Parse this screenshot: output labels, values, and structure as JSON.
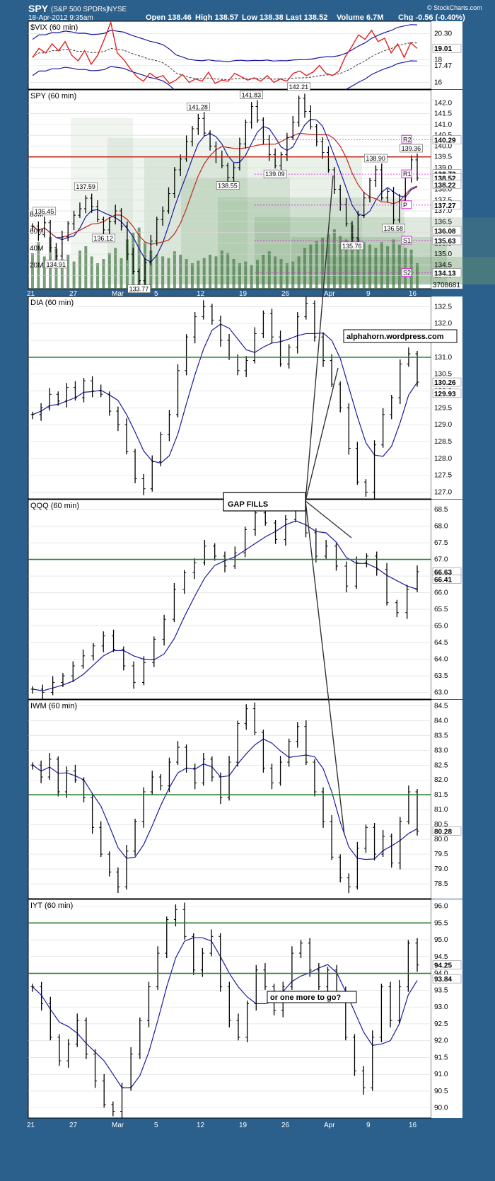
{
  "header": {
    "symbol": "SPY",
    "name": "(S&P 500 SPDRs)",
    "exchange": "NYSE",
    "date": "18-Apr-2012 9:35am",
    "open": "Open 138.46",
    "high": "High 138.57",
    "low": "Low 138.38",
    "last": "Last 138.52",
    "volume": "Volume 6.7M",
    "chg": "Chg -0.56 (-0.40%)",
    "brand": "© StockCharts.com"
  },
  "colors": {
    "frame": "#2b5f8c",
    "price": "#000000",
    "ma_blue": "#1a1aa0",
    "ma_red": "#c0281c",
    "vix_price": "#e02020",
    "support_green": "#2e7d32",
    "pivot_magenta": "#e020e0",
    "volume_green": "#6e9e6e"
  },
  "x_axis": {
    "labels": [
      "21",
      "27",
      "Mar",
      "5",
      "12",
      "19",
      "26",
      "Apr",
      "9",
      "16"
    ]
  },
  "annotations": {
    "gap_fills": "GAP FILLS",
    "blog": "alphahorn.wordpress.com",
    "one_more": "or one more to go?"
  },
  "chart_data": [
    {
      "type": "line",
      "title": "$VIX (60 min)",
      "ylim": [
        15.4,
        21.4
      ],
      "y_ticks": [
        "20.30",
        "18",
        "17.47",
        "16"
      ],
      "last_label": "19.01",
      "series": [
        {
          "name": "$VIX",
          "values": [
            18.2,
            19.0,
            18.6,
            19.4,
            18.8,
            19.6,
            18.4,
            17.9,
            18.8,
            17.6,
            18.4,
            19.8,
            21.3,
            18.6,
            18.0,
            17.2,
            16.5,
            16.1,
            16.8,
            16.4,
            16.6,
            15.9,
            16.2,
            16.7,
            16.0,
            16.3,
            16.1,
            16.9,
            15.9,
            16.2,
            16.1,
            16.8,
            16.5,
            16.2,
            16.4,
            16.1,
            16.6,
            16.0,
            16.3,
            16.1,
            16.8,
            17.0,
            16.6,
            16.9,
            17.5,
            16.8,
            16.6,
            17.0,
            18.3,
            19.2,
            20.2,
            19.8,
            20.6,
            19.6,
            19.9,
            18.6,
            19.4,
            18.2,
            19.5,
            19.0
          ]
        }
      ]
    },
    {
      "type": "bar",
      "title": "SPY (60 min)",
      "ylim": [
        133.4,
        142.6
      ],
      "y_ticks": [
        "142.5",
        "142.0",
        "141.5",
        "141.0",
        "140.5",
        "140.0",
        "139.5",
        "139.0",
        "138.5",
        "138.0",
        "137.5",
        "137.0",
        "136.5",
        "136.0",
        "135.5",
        "135.0",
        "134.5",
        "134.0"
      ],
      "right_labels": [
        "140.29",
        "138.72",
        "138.52",
        "138.22",
        "137.27",
        "136.08",
        "135.63",
        "134.13"
      ],
      "volume_labels": [
        "80M",
        "60M",
        "40M",
        "20M"
      ],
      "volume_last": "3708681",
      "price_labels": [
        "136.45",
        "134.91",
        "137.59",
        "136.12",
        "133.77",
        "141.28",
        "141.83",
        "138.55",
        "139.09",
        "142.21",
        "135.76",
        "138.90",
        "136.58",
        "139.36"
      ],
      "pivot_labels": [
        "R2",
        "R1",
        "P",
        "S1",
        "S2"
      ],
      "series": [
        {
          "name": "SPY",
          "values": [
            136.3,
            135.9,
            136.45,
            135.3,
            134.91,
            135.8,
            136.4,
            136.8,
            137.1,
            137.59,
            137.2,
            136.6,
            136.12,
            136.5,
            137.0,
            136.3,
            135.0,
            134.2,
            133.77,
            134.6,
            135.6,
            136.6,
            137.0,
            137.8,
            138.9,
            139.4,
            140.2,
            140.8,
            141.28,
            140.6,
            140.0,
            139.5,
            139.1,
            138.55,
            139.0,
            140.1,
            141.1,
            141.83,
            141.2,
            140.3,
            139.6,
            139.09,
            139.6,
            140.4,
            141.1,
            142.21,
            141.6,
            140.9,
            140.2,
            139.7,
            138.9,
            138.0,
            137.3,
            136.4,
            135.76,
            136.8,
            137.6,
            138.4,
            138.9,
            137.6,
            137.9,
            136.58,
            137.5,
            138.6,
            139.36,
            138.52
          ]
        }
      ],
      "volume": [
        42,
        55,
        38,
        61,
        47,
        35,
        40,
        32,
        45,
        50,
        38,
        30,
        35,
        42,
        48,
        36,
        58,
        66,
        72,
        55,
        45,
        40,
        38,
        36,
        44,
        40,
        35,
        30,
        33,
        36,
        40,
        38,
        45,
        42,
        35,
        30,
        32,
        28,
        34,
        40,
        44,
        38,
        35,
        30,
        32,
        38,
        48,
        52,
        56,
        60,
        64,
        70,
        62,
        58,
        75,
        60,
        55,
        52,
        48,
        55,
        50,
        58,
        52,
        48,
        46,
        30
      ]
    },
    {
      "type": "bar",
      "title": "DIA (60 min)",
      "ylim": [
        126.8,
        132.8
      ],
      "y_ticks": [
        "132.5",
        "132.0",
        "131.5",
        "131.0",
        "130.5",
        "130.0",
        "129.5",
        "129.0",
        "128.5",
        "128.0",
        "127.5",
        "127.0"
      ],
      "right_labels": [
        "130.26",
        "129.93"
      ],
      "series": [
        {
          "name": "DIA",
          "values": [
            129.3,
            129.5,
            129.9,
            129.7,
            130.1,
            129.8,
            130.3,
            130.0,
            129.9,
            129.4,
            129.0,
            128.2,
            127.4,
            127.1,
            127.9,
            128.7,
            129.3,
            130.6,
            131.6,
            132.2,
            132.5,
            132.1,
            131.5,
            131.0,
            130.6,
            130.9,
            131.7,
            132.3,
            131.6,
            130.8,
            131.3,
            132.2,
            132.6,
            131.6,
            130.9,
            130.2,
            129.5,
            128.3,
            127.3,
            127.0,
            128.4,
            129.3,
            129.8,
            130.8,
            131.1,
            130.26
          ]
        }
      ]
    },
    {
      "type": "bar",
      "title": "QQQ (60 min)",
      "ylim": [
        62.8,
        68.8
      ],
      "y_ticks": [
        "68.5",
        "68.0",
        "67.5",
        "67.0",
        "66.5",
        "66.0",
        "65.5",
        "65.0",
        "64.5",
        "64.0",
        "63.5",
        "63.0"
      ],
      "right_labels": [
        "66.63",
        "66.41"
      ],
      "series": [
        {
          "name": "QQQ",
          "values": [
            63.1,
            63.0,
            63.3,
            63.5,
            63.8,
            64.1,
            64.4,
            64.7,
            64.3,
            63.8,
            63.3,
            63.9,
            64.6,
            65.2,
            66.1,
            66.6,
            66.9,
            67.4,
            67.1,
            66.8,
            67.2,
            67.9,
            68.4,
            68.1,
            67.6,
            68.2,
            68.5,
            67.8,
            67.1,
            67.4,
            66.8,
            66.2,
            66.9,
            67.1,
            66.7,
            65.7,
            65.4,
            66.1,
            66.63
          ]
        }
      ]
    },
    {
      "type": "bar",
      "title": "IWM (60 min)",
      "ylim": [
        78.0,
        84.7
      ],
      "y_ticks": [
        "84.5",
        "84.0",
        "83.5",
        "83.0",
        "82.5",
        "82.0",
        "81.5",
        "81.0",
        "80.5",
        "80.0",
        "79.5",
        "79.0",
        "78.5"
      ],
      "right_labels": [
        "80.28"
      ],
      "series": [
        {
          "name": "IWM",
          "values": [
            82.5,
            82.1,
            82.7,
            81.6,
            82.3,
            82.0,
            81.4,
            80.4,
            79.5,
            78.9,
            78.4,
            79.6,
            80.6,
            81.6,
            82.1,
            81.8,
            82.6,
            83.1,
            82.4,
            81.9,
            82.7,
            82.1,
            81.4,
            82.6,
            83.9,
            84.4,
            83.6,
            82.4,
            81.9,
            82.6,
            83.3,
            83.8,
            82.6,
            81.6,
            80.6,
            79.4,
            78.7,
            78.4,
            79.7,
            80.4,
            79.5,
            80.1,
            79.2,
            80.6,
            81.6,
            80.28
          ]
        }
      ]
    },
    {
      "type": "bar",
      "title": "IYT (60 min)",
      "ylim": [
        89.7,
        96.2
      ],
      "y_ticks": [
        "96.0",
        "95.5",
        "95.0",
        "94.5",
        "94.0",
        "93.5",
        "93.0",
        "92.5",
        "92.0",
        "91.5",
        "91.0",
        "90.5",
        "90.0"
      ],
      "right_labels": [
        "94.25",
        "93.84"
      ],
      "series": [
        {
          "name": "IYT",
          "values": [
            93.6,
            93.1,
            92.1,
            91.4,
            91.9,
            92.6,
            91.6,
            90.8,
            90.1,
            89.9,
            90.6,
            91.6,
            92.6,
            93.6,
            94.6,
            95.6,
            95.9,
            95.1,
            94.1,
            94.6,
            95.1,
            93.6,
            92.6,
            92.1,
            93.1,
            94.1,
            93.6,
            92.9,
            93.6,
            94.6,
            94.9,
            94.1,
            93.6,
            94.1,
            93.4,
            92.1,
            91.1,
            90.6,
            92.1,
            93.6,
            92.6,
            93.6,
            94.9,
            94.25
          ]
        }
      ]
    }
  ]
}
